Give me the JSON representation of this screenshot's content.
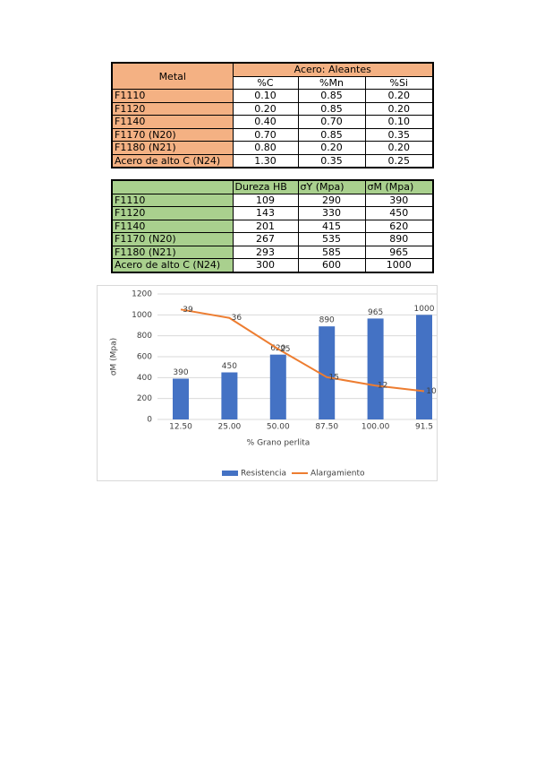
{
  "table1": {
    "header": {
      "metal": "Metal",
      "group": "Acero: Aleantes",
      "columns": [
        "%C",
        "%Mn",
        "%Si"
      ]
    },
    "rows": [
      [
        "F1110",
        "0.10",
        "0.85",
        "0.20"
      ],
      [
        "F1120",
        "0.20",
        "0.85",
        "0.20"
      ],
      [
        "F1140",
        "0.40",
        "0.70",
        "0.10"
      ],
      [
        "F1170 (N20)",
        "0.70",
        "0.85",
        "0.35"
      ],
      [
        "F1180 (N21)",
        "0.80",
        "0.20",
        "0.20"
      ],
      [
        "Acero de alto C (N24)",
        "1.30",
        "0.35",
        "0.25"
      ]
    ]
  },
  "table2": {
    "columns": [
      "Dureza HB",
      "σY (Mpa)",
      "σM (Mpa)"
    ],
    "rows": [
      [
        "F1110",
        "109",
        "290",
        "390"
      ],
      [
        "F1120",
        "143",
        "330",
        "450"
      ],
      [
        "F1140",
        "201",
        "415",
        "620"
      ],
      [
        "F1170 (N20)",
        "267",
        "535",
        "890"
      ],
      [
        "F1180 (N21)",
        "293",
        "585",
        "965"
      ],
      [
        "Acero de alto C (N24)",
        "300",
        "600",
        "1000"
      ]
    ]
  },
  "chart_data": {
    "type": "bar-line",
    "y_label": "σM (Mpa)",
    "x_label": "% Grano perlita",
    "categories": [
      "12.50",
      "25.00",
      "50.00",
      "87.50",
      "100.00",
      "91.5"
    ],
    "series": [
      {
        "name": "Resistencia",
        "color": "#4472c4",
        "values": [
          390,
          450,
          620,
          890,
          965,
          1000
        ]
      },
      {
        "name": "Alargamiento",
        "color": "#ed7d31",
        "axis": "y2",
        "values": [
          39,
          36,
          25,
          15,
          12,
          10
        ]
      }
    ],
    "ylim": [
      0,
      1200
    ],
    "yticks": [
      0,
      200,
      400,
      600,
      800,
      1000,
      1200
    ],
    "y2lim": [
      0,
      44.5
    ],
    "grid": true
  }
}
